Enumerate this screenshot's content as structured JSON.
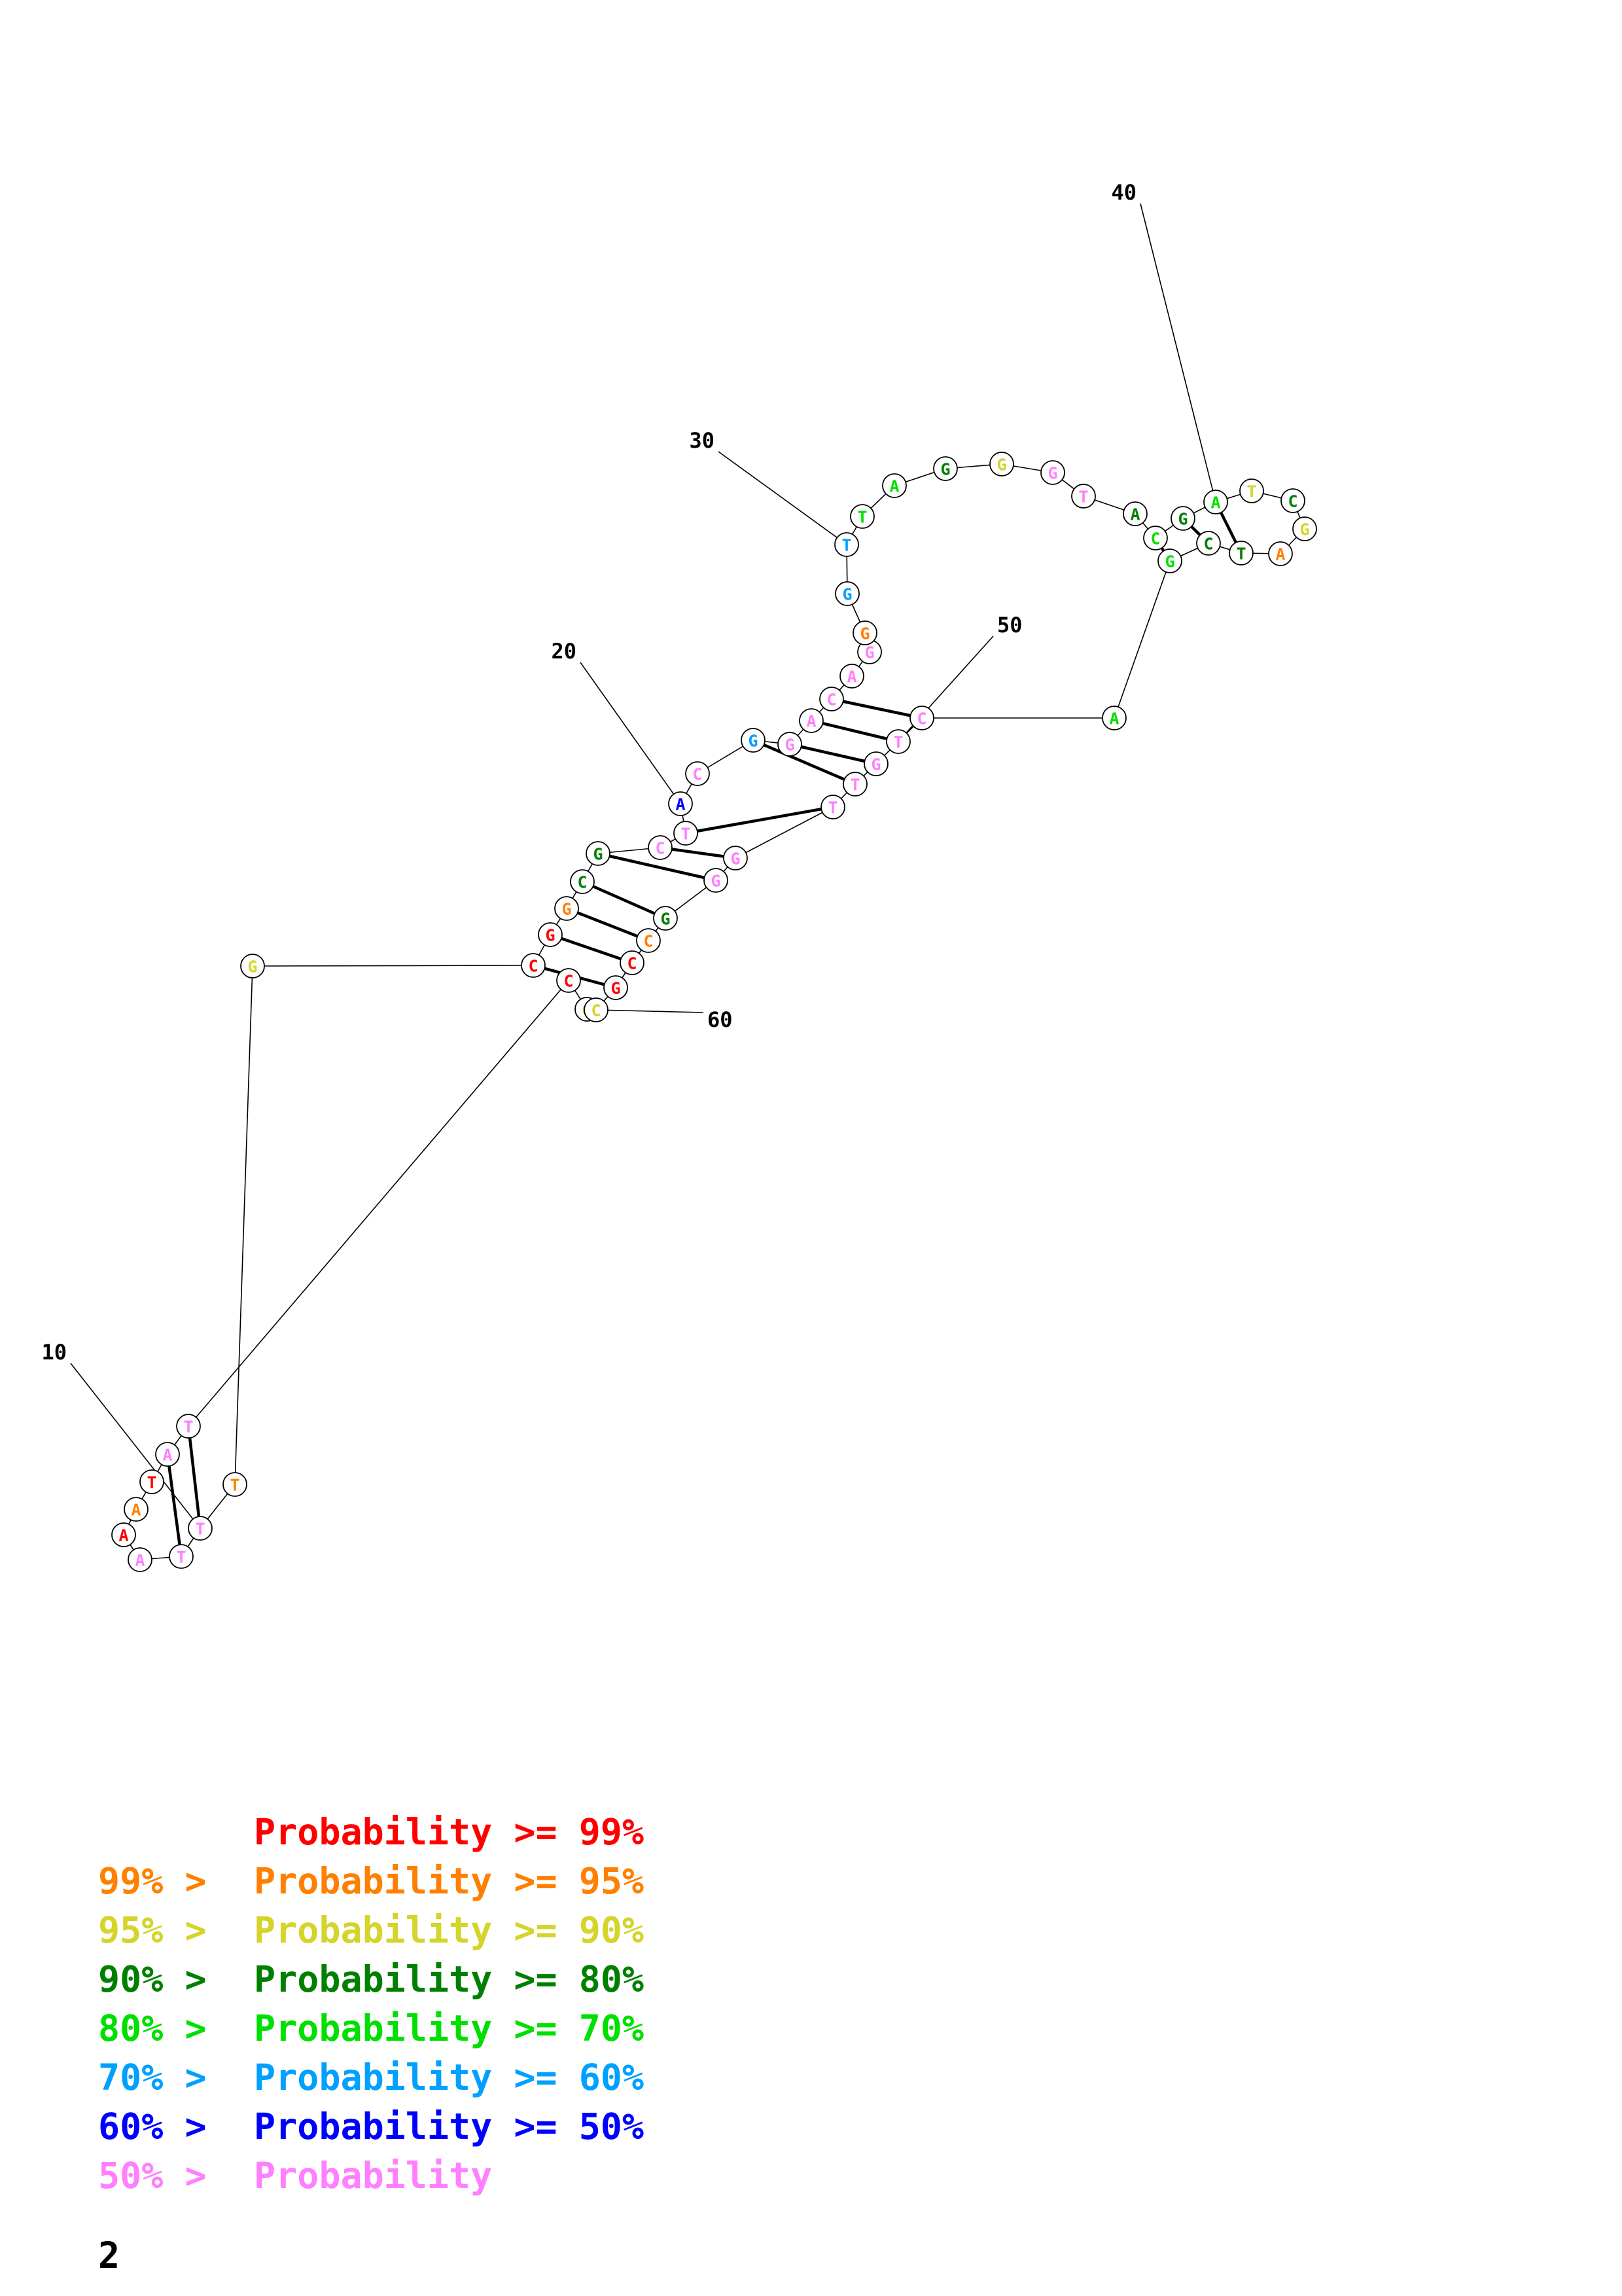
{
  "colors": {
    "p99": "#ff0000",
    "p95": "#ff8000",
    "p90": "#d4d42a",
    "p80": "#008000",
    "p70": "#00e000",
    "p60": "#00a0ff",
    "p50": "#0000ff",
    "plow": "#ff80ff"
  },
  "sequence": [
    {
      "n": 1,
      "base": "G",
      "prob": "p90"
    },
    {
      "n": 2,
      "base": "C",
      "prob": "p99"
    },
    {
      "n": 3,
      "base": "T",
      "prob": "plow"
    },
    {
      "n": 4,
      "base": "A",
      "prob": "plow"
    },
    {
      "n": 5,
      "base": "T",
      "prob": "p99"
    },
    {
      "n": 6,
      "base": "A",
      "prob": "p95"
    },
    {
      "n": 7,
      "base": "A",
      "prob": "p99"
    },
    {
      "n": 8,
      "base": "A",
      "prob": "plow"
    },
    {
      "n": 9,
      "base": "T",
      "prob": "plow"
    },
    {
      "n": 10,
      "base": "T",
      "prob": "plow"
    },
    {
      "n": 11,
      "base": "T",
      "prob": "p95"
    },
    {
      "n": 12,
      "base": "G",
      "prob": "p90"
    },
    {
      "n": 13,
      "base": "C",
      "prob": "p99"
    },
    {
      "n": 14,
      "base": "G",
      "prob": "p99"
    },
    {
      "n": 15,
      "base": "G",
      "prob": "p95"
    },
    {
      "n": 16,
      "base": "C",
      "prob": "p80"
    },
    {
      "n": 17,
      "base": "G",
      "prob": "p80"
    },
    {
      "n": 18,
      "base": "C",
      "prob": "plow"
    },
    {
      "n": 19,
      "base": "T",
      "prob": "plow"
    },
    {
      "n": 20,
      "base": "A",
      "prob": "p50"
    },
    {
      "n": 21,
      "base": "C",
      "prob": "plow"
    },
    {
      "n": 22,
      "base": "G",
      "prob": "p60"
    },
    {
      "n": 23,
      "base": "G",
      "prob": "plow"
    },
    {
      "n": 24,
      "base": "A",
      "prob": "plow"
    },
    {
      "n": 25,
      "base": "C",
      "prob": "plow"
    },
    {
      "n": 26,
      "base": "A",
      "prob": "plow"
    },
    {
      "n": 27,
      "base": "G",
      "prob": "plow"
    },
    {
      "n": 28,
      "base": "G",
      "prob": "p95"
    },
    {
      "n": 29,
      "base": "G",
      "prob": "p60"
    },
    {
      "n": 30,
      "base": "T",
      "prob": "p60"
    },
    {
      "n": 31,
      "base": "T",
      "prob": "p70"
    },
    {
      "n": 32,
      "base": "A",
      "prob": "p70"
    },
    {
      "n": 33,
      "base": "G",
      "prob": "p80"
    },
    {
      "n": 34,
      "base": "G",
      "prob": "p90"
    },
    {
      "n": 35,
      "base": "G",
      "prob": "plow"
    },
    {
      "n": 36,
      "base": "T",
      "prob": "plow"
    },
    {
      "n": 37,
      "base": "A",
      "prob": "p80"
    },
    {
      "n": 38,
      "base": "C",
      "prob": "p70"
    },
    {
      "n": 39,
      "base": "G",
      "prob": "p80"
    },
    {
      "n": 40,
      "base": "A",
      "prob": "p70"
    },
    {
      "n": 41,
      "base": "T",
      "prob": "p90"
    },
    {
      "n": 42,
      "base": "C",
      "prob": "p80"
    },
    {
      "n": 43,
      "base": "G",
      "prob": "p90"
    },
    {
      "n": 44,
      "base": "A",
      "prob": "p95"
    },
    {
      "n": 45,
      "base": "T",
      "prob": "p80"
    },
    {
      "n": 46,
      "base": "C",
      "prob": "p80"
    },
    {
      "n": 47,
      "base": "G",
      "prob": "p70"
    },
    {
      "n": 48,
      "base": "A",
      "prob": "p70"
    },
    {
      "n": 49,
      "base": "C",
      "prob": "plow"
    },
    {
      "n": 50,
      "base": "T",
      "prob": "plow"
    },
    {
      "n": 51,
      "base": "G",
      "prob": "plow"
    },
    {
      "n": 52,
      "base": "T",
      "prob": "plow"
    },
    {
      "n": 53,
      "base": "T",
      "prob": "plow"
    },
    {
      "n": 54,
      "base": "G",
      "prob": "plow"
    },
    {
      "n": 55,
      "base": "G",
      "prob": "plow"
    },
    {
      "n": 56,
      "base": "G",
      "prob": "p80"
    },
    {
      "n": 57,
      "base": "C",
      "prob": "p95"
    },
    {
      "n": 58,
      "base": "C",
      "prob": "p99"
    },
    {
      "n": 59,
      "base": "G",
      "prob": "p99"
    },
    {
      "n": 60,
      "base": "C",
      "prob": "p90"
    }
  ],
  "pairs": [
    [
      3,
      10
    ],
    [
      4,
      9
    ],
    [
      13,
      59
    ],
    [
      14,
      58
    ],
    [
      15,
      57
    ],
    [
      16,
      56
    ],
    [
      17,
      55
    ],
    [
      18,
      54
    ],
    [
      19,
      53
    ],
    [
      22,
      52
    ],
    [
      23,
      51
    ],
    [
      24,
      50
    ],
    [
      25,
      49
    ],
    [
      38,
      47
    ],
    [
      39,
      46
    ],
    [
      40,
      45
    ]
  ],
  "position_labels": [
    {
      "text": "10",
      "nuc": 10
    },
    {
      "text": "20",
      "nuc": 20
    },
    {
      "text": "30",
      "nuc": 30
    },
    {
      "text": "40",
      "nuc": 40
    },
    {
      "text": "50",
      "nuc": 50
    },
    {
      "text": "60",
      "nuc": 60
    }
  ],
  "legend": [
    {
      "prefix": "",
      "text": "Probability >= 99%",
      "prob": "p99"
    },
    {
      "prefix": "99% > ",
      "text": "Probability >= 95%",
      "prob": "p95"
    },
    {
      "prefix": "95% > ",
      "text": "Probability >= 90%",
      "prob": "p90"
    },
    {
      "prefix": "90% > ",
      "text": "Probability >= 80%",
      "prob": "p80"
    },
    {
      "prefix": "80% > ",
      "text": "Probability >= 70%",
      "prob": "p70"
    },
    {
      "prefix": "70% > ",
      "text": "Probability >= 60%",
      "prob": "p60"
    },
    {
      "prefix": "60% > ",
      "text": "Probability >= 50%",
      "prob": "p50"
    },
    {
      "prefix": "50% > ",
      "text": "Probability",
      "prob": "plow"
    }
  ],
  "page_number": "2"
}
